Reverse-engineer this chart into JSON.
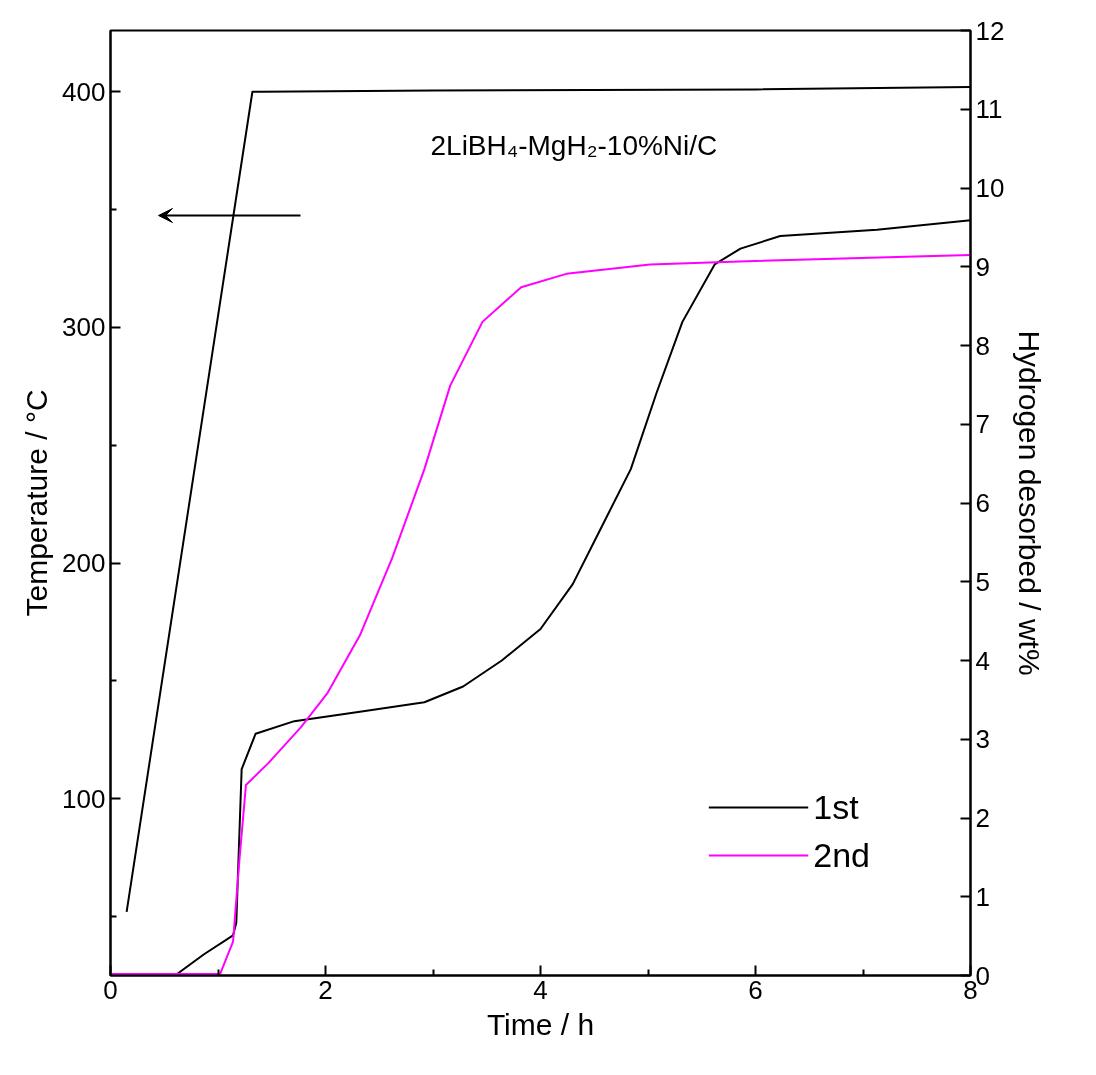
{
  "chart_data": {
    "type": "line",
    "xlabel": "Time / h",
    "ylabel": "Temperature / °C",
    "y2label": "Hydrogen desorbed / wt%",
    "annotations": [
      "2LiBH₄-MgH₂-10%Ni/C"
    ],
    "xlim": [
      0,
      8
    ],
    "xticks": [
      0,
      {
        "value": 1,
        "label": null
      },
      2,
      {
        "value": 3,
        "label": null
      },
      4,
      {
        "value": 5,
        "label": null
      },
      6,
      {
        "value": 7,
        "label": null
      },
      8
    ],
    "ylim": [
      25,
      426
    ],
    "yticks": [
      {
        "value": 50,
        "label": null
      },
      100,
      {
        "value": 150,
        "label": null
      },
      200,
      {
        "value": 250,
        "label": null
      },
      300,
      {
        "value": 350,
        "label": null
      },
      400
    ],
    "y2lim": [
      0,
      12
    ],
    "y2ticks": [
      0,
      1,
      2,
      3,
      4,
      5,
      6,
      7,
      8,
      9,
      10,
      11,
      12
    ],
    "grid": false,
    "legend": "bottom right",
    "line_style": "solid",
    "series": [
      {
        "color": "#000000",
        "x": [
          0.15,
          1.32,
          1.4,
          3,
          6,
          8
        ],
        "values": [
          52,
          400,
          400,
          400.5,
          401,
          402
        ]
      },
      {
        "name": "1st",
        "color": "#000000",
        "axis": "y2",
        "x": [
          0,
          0.6,
          0.87,
          1.14,
          1.17,
          1.22,
          1.35,
          1.71,
          2.32,
          2.92,
          3.28,
          3.64,
          4.0,
          4.3,
          4.54,
          4.84,
          5.08,
          5.32,
          5.62,
          5.86,
          6.23,
          7.13,
          8
        ],
        "values": [
          0,
          0,
          0.27,
          0.51,
          0.67,
          2.62,
          3.07,
          3.23,
          3.35,
          3.47,
          3.67,
          4.0,
          4.4,
          4.97,
          5.62,
          6.43,
          7.4,
          8.3,
          9.03,
          9.23,
          9.39,
          9.47,
          9.59
        ]
      },
      {
        "name": "2nd",
        "color": "#ff00ff",
        "axis": "y2",
        "x": [
          0,
          1.02,
          1.14,
          1.2,
          1.26,
          1.47,
          1.77,
          2.02,
          2.32,
          2.62,
          2.92,
          3.16,
          3.46,
          3.82,
          4.24,
          5.02,
          5.92,
          8
        ],
        "values": [
          0.02,
          0.02,
          0.43,
          1.48,
          2.42,
          2.7,
          3.15,
          3.59,
          4.32,
          5.3,
          6.43,
          7.49,
          8.3,
          8.74,
          8.91,
          9.03,
          9.07,
          9.15
        ]
      }
    ]
  }
}
